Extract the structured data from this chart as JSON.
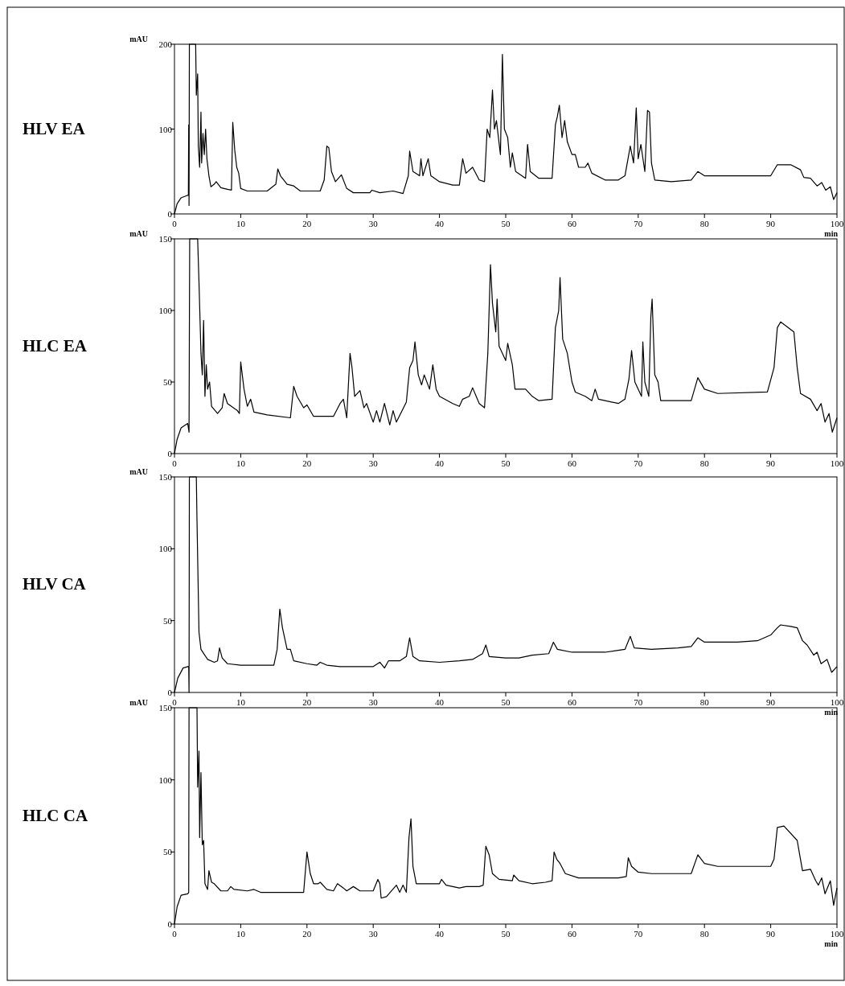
{
  "chart_data": [
    {
      "type": "line",
      "title": "HLV EA",
      "ylabel": "mAU",
      "xlabel": "min",
      "xlim": [
        0,
        100
      ],
      "xticks": [
        0,
        10,
        20,
        30,
        40,
        50,
        60,
        70,
        80,
        90,
        100
      ],
      "ylim": [
        0,
        200
      ],
      "yticks": [
        0,
        100,
        200
      ],
      "grid": false,
      "marker": "none",
      "line_style": "solid",
      "series": [
        {
          "color": "#000000",
          "x": [
            0,
            0.4,
            1,
            2,
            2.1,
            2.15,
            2.2,
            2.25,
            3.2,
            3.3,
            3.5,
            3.6,
            3.8,
            4,
            4.1,
            4.3,
            4.5,
            4.7,
            4.9,
            5.2,
            5.5,
            6,
            6.3,
            7,
            8,
            8.6,
            8.8,
            9.1,
            9.4,
            9.7,
            10,
            11,
            14,
            15.3,
            15.6,
            16,
            17,
            18,
            19,
            22,
            22.6,
            23,
            23.3,
            23.7,
            24.3,
            25.2,
            26,
            27,
            29.5,
            29.8,
            31,
            33,
            34.5,
            35.3,
            35.5,
            36,
            37,
            37.2,
            37.5,
            38.3,
            38.7,
            40,
            42,
            43,
            43.5,
            44,
            45,
            46,
            46.8,
            47.2,
            47.6,
            48,
            48.3,
            48.6,
            49.2,
            49.5,
            49.8,
            50.3,
            50.7,
            51,
            51.5,
            53,
            53.3,
            53.7,
            55,
            57,
            57.5,
            57.8,
            58.1,
            58.5,
            58.9,
            59.3,
            60,
            60.5,
            61,
            62,
            62.4,
            63,
            65,
            67,
            68,
            68.8,
            69.3,
            69.7,
            70,
            70.4,
            71,
            71.4,
            71.7,
            72,
            72.5,
            75,
            78,
            79,
            80,
            90,
            91,
            93,
            94.5,
            95,
            96,
            97,
            97.7,
            98.3,
            99,
            99.5,
            100
          ],
          "values": [
            0,
            12,
            19,
            22,
            22,
            105,
            10,
            200,
            200,
            140,
            165,
            80,
            55,
            120,
            60,
            95,
            70,
            100,
            65,
            45,
            32,
            35,
            38,
            31,
            29,
            28,
            108,
            75,
            55,
            48,
            30,
            27,
            27,
            35,
            53,
            45,
            35,
            33,
            27,
            27,
            40,
            80,
            78,
            50,
            38,
            46,
            30,
            25,
            25,
            28,
            25,
            27,
            24,
            45,
            74,
            50,
            45,
            65,
            45,
            65,
            45,
            38,
            34,
            34,
            65,
            48,
            55,
            40,
            38,
            100,
            90,
            146,
            100,
            110,
            70,
            188,
            100,
            90,
            55,
            72,
            50,
            42,
            82,
            50,
            42,
            42,
            105,
            115,
            128,
            90,
            110,
            85,
            70,
            70,
            55,
            55,
            60,
            48,
            40,
            40,
            45,
            80,
            60,
            125,
            65,
            82,
            50,
            122,
            120,
            60,
            40,
            38,
            40,
            50,
            45,
            45,
            58,
            58,
            52,
            43,
            42,
            33,
            37,
            28,
            32,
            17,
            25
          ]
        }
      ]
    },
    {
      "type": "line",
      "title": "HLC EA",
      "ylabel": "mAU",
      "xlim": [
        0,
        100
      ],
      "xticks": [
        0,
        10,
        20,
        30,
        40,
        50,
        60,
        70,
        80,
        90,
        100
      ],
      "ylim": [
        0,
        150
      ],
      "yticks": [
        0,
        50,
        100,
        150
      ],
      "grid": false,
      "marker": "none",
      "line_style": "solid",
      "series": [
        {
          "color": "#000000",
          "x": [
            0,
            0.4,
            1,
            2,
            2.2,
            2.25,
            2.3,
            3.5,
            3.7,
            4,
            4.2,
            4.4,
            4.6,
            4.8,
            5,
            5.3,
            5.6,
            6.5,
            7.2,
            7.5,
            8,
            9.5,
            9.8,
            10,
            10.5,
            11,
            11.5,
            12,
            14,
            17.5,
            18,
            18.5,
            19.5,
            20,
            21,
            24,
            25,
            25.5,
            26,
            26.5,
            26.8,
            27.2,
            28,
            28.6,
            29,
            30,
            30.5,
            31,
            31.7,
            32.5,
            33,
            33.5,
            35,
            35.5,
            36,
            36.3,
            36.8,
            37.3,
            37.7,
            38.5,
            39,
            39.5,
            40,
            42,
            43,
            43.5,
            44.5,
            45,
            46,
            46.8,
            47.3,
            47.7,
            48,
            48.5,
            48.7,
            49,
            50,
            50.3,
            51,
            51.4,
            53,
            54,
            55,
            57,
            57.5,
            58,
            58.2,
            58.6,
            59.3,
            60,
            60.5,
            62,
            63,
            63.5,
            64,
            67,
            68,
            68.6,
            69,
            69.5,
            70,
            70.5,
            70.7,
            71,
            71.6,
            71.9,
            72.1,
            72.5,
            73,
            73.4,
            78,
            79,
            80,
            82,
            89.5,
            90.5,
            91,
            91.5,
            93.5,
            94,
            94.5,
            96,
            97,
            97.6,
            98.2,
            98.8,
            99.3,
            100
          ],
          "values": [
            0,
            10,
            18,
            21,
            15,
            87,
            150,
            150,
            120,
            70,
            55,
            93,
            40,
            62,
            45,
            50,
            33,
            28,
            32,
            42,
            35,
            30,
            28,
            64,
            45,
            33,
            38,
            29,
            27,
            25,
            47,
            40,
            32,
            34,
            26,
            26,
            35,
            38,
            25,
            70,
            60,
            40,
            44,
            32,
            35,
            22,
            30,
            22,
            35,
            20,
            30,
            22,
            36,
            60,
            65,
            78,
            55,
            48,
            55,
            45,
            62,
            45,
            40,
            35,
            33,
            38,
            40,
            46,
            35,
            32,
            70,
            132,
            105,
            85,
            108,
            75,
            65,
            77,
            62,
            45,
            45,
            40,
            37,
            38,
            88,
            100,
            123,
            80,
            70,
            50,
            43,
            40,
            37,
            45,
            38,
            35,
            38,
            52,
            72,
            50,
            45,
            40,
            78,
            50,
            40,
            95,
            108,
            55,
            50,
            37,
            37,
            53,
            45,
            42,
            43,
            60,
            88,
            92,
            85,
            60,
            42,
            38,
            30,
            35,
            22,
            28,
            15,
            25
          ]
        }
      ]
    },
    {
      "type": "line",
      "title": "HLV CA",
      "ylabel": "mAU",
      "xlabel": "min",
      "xlim": [
        0,
        100
      ],
      "xticks": [
        0,
        10,
        20,
        30,
        40,
        50,
        60,
        70,
        80,
        90,
        100
      ],
      "ylim": [
        0,
        150
      ],
      "yticks": [
        0,
        50,
        100,
        150
      ],
      "grid": false,
      "marker": "none",
      "line_style": "solid",
      "series": [
        {
          "color": "#000000",
          "x": [
            0,
            0.5,
            1.3,
            2,
            2.15,
            2.2,
            2.25,
            3.3,
            3.4,
            3.7,
            4,
            5,
            6,
            6.5,
            6.8,
            7.2,
            8,
            10,
            12,
            15,
            15.5,
            15.9,
            16.3,
            17,
            17.5,
            18,
            20,
            21.5,
            22,
            23,
            25,
            28,
            30,
            31,
            31.7,
            32.3,
            34,
            35,
            35.5,
            36,
            37,
            40,
            43,
            45,
            46.5,
            47,
            47.5,
            50,
            52,
            54,
            56.5,
            57.2,
            57.8,
            60,
            65,
            68,
            68.8,
            69.4,
            72,
            76,
            78,
            79,
            80,
            85,
            88,
            90,
            91,
            91.5,
            93,
            94,
            94.8,
            95.5,
            96.5,
            97,
            97.6,
            98.5,
            99.2,
            100
          ],
          "values": [
            0,
            10,
            17,
            18,
            18,
            0,
            150,
            150,
            120,
            42,
            30,
            23,
            21,
            22,
            31,
            24,
            20,
            19,
            19,
            19,
            30,
            58,
            45,
            30,
            30,
            22,
            20,
            19,
            21,
            19,
            18,
            18,
            18,
            21,
            17,
            22,
            22,
            25,
            38,
            25,
            22,
            21,
            22,
            23,
            27,
            33,
            25,
            24,
            24,
            26,
            27,
            35,
            30,
            28,
            28,
            30,
            39,
            31,
            30,
            31,
            32,
            38,
            35,
            35,
            36,
            40,
            45,
            47,
            46,
            45,
            36,
            33,
            26,
            28,
            20,
            23,
            14,
            18
          ]
        }
      ]
    },
    {
      "type": "line",
      "title": "HLC CA",
      "ylabel": "mAU",
      "xlabel": "min",
      "xlim": [
        0,
        100
      ],
      "xticks": [
        0,
        10,
        20,
        30,
        40,
        50,
        60,
        70,
        80,
        90,
        100
      ],
      "ylim": [
        0,
        150
      ],
      "yticks": [
        0,
        50,
        100,
        150
      ],
      "grid": false,
      "marker": "none",
      "line_style": "solid",
      "series": [
        {
          "color": "#000000",
          "x": [
            0,
            0.4,
            1,
            2,
            2.15,
            2.2,
            3.4,
            3.5,
            3.7,
            3.8,
            4,
            4.2,
            4.4,
            4.6,
            5,
            5.2,
            5.6,
            6,
            7,
            8,
            8.5,
            9,
            11,
            12,
            13,
            19.5,
            20,
            20.5,
            21,
            21.7,
            22,
            23,
            24,
            24.6,
            25.5,
            26,
            27,
            28,
            30,
            30.7,
            31,
            31.2,
            32,
            33.5,
            34,
            34.5,
            35,
            35.4,
            35.7,
            36,
            36.5,
            38,
            40,
            40.3,
            41,
            43,
            44,
            46,
            46.6,
            47,
            47.5,
            48,
            49,
            51,
            51.2,
            52,
            54,
            56,
            57,
            57.3,
            57.7,
            58.2,
            59,
            61,
            67,
            68.2,
            68.5,
            69,
            70,
            72,
            78,
            79,
            80,
            82,
            90,
            90.5,
            91,
            92,
            94,
            94.3,
            94.8,
            96,
            96.8,
            97.2,
            97.7,
            98.2,
            99,
            99.5,
            100
          ],
          "values": [
            0,
            12,
            20,
            21,
            22,
            150,
            150,
            95,
            120,
            60,
            105,
            55,
            58,
            28,
            24,
            37,
            29,
            28,
            23,
            23,
            26,
            24,
            23,
            24,
            22,
            22,
            50,
            35,
            28,
            28,
            29,
            24,
            23,
            28,
            25,
            23,
            26,
            23,
            23,
            31,
            28,
            18,
            19,
            27,
            22,
            27,
            22,
            60,
            73,
            40,
            28,
            28,
            28,
            31,
            27,
            25,
            26,
            26,
            27,
            54,
            48,
            35,
            31,
            30,
            34,
            30,
            28,
            29,
            30,
            50,
            45,
            42,
            35,
            32,
            32,
            33,
            46,
            40,
            36,
            35,
            35,
            48,
            42,
            40,
            40,
            45,
            67,
            68,
            58,
            50,
            37,
            38,
            30,
            27,
            32,
            21,
            30,
            13,
            25
          ]
        }
      ]
    }
  ]
}
